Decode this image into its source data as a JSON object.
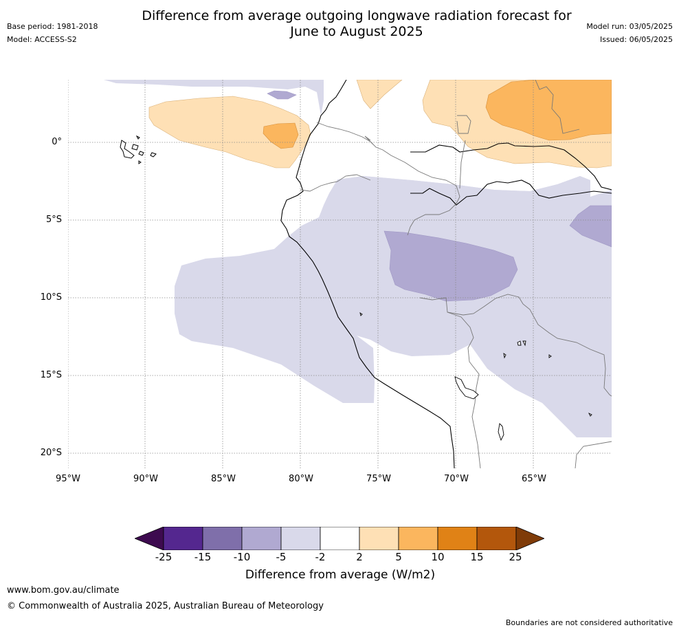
{
  "title_line1": "Difference from average outgoing longwave radiation forecast for",
  "title_line2": "June to August 2025",
  "base_period": "Base period: 1981-2018",
  "model": "Model: ACCESS-S2",
  "model_run": "Model run: 03/05/2025",
  "issued": "Issued: 06/05/2025",
  "x_ticks": [
    "95°W",
    "90°W",
    "85°W",
    "80°W",
    "75°W",
    "70°W",
    "65°W"
  ],
  "y_ticks": [
    "0°",
    "5°S",
    "10°S",
    "15°S",
    "20°S"
  ],
  "colorbar": {
    "ticks": [
      "-25",
      "-15",
      "-10",
      "-5",
      "-2",
      "2",
      "5",
      "10",
      "15",
      "25"
    ],
    "colors": [
      "#3d0a4f",
      "#54278f",
      "#7f6faa",
      "#b0a9d1",
      "#d9d9ea",
      "#ffffff",
      "#fee0b5",
      "#fbb65e",
      "#e08216",
      "#b3570c",
      "#7f3b08"
    ],
    "label": "Difference from average (W/m2)"
  },
  "legend_categories": [
    {
      "range": "-5 to -2",
      "color": "#d9d9ea"
    },
    {
      "range": "-10 to -5",
      "color": "#b0a9d1"
    },
    {
      "range": "2 to 5",
      "color": "#fee0b5"
    },
    {
      "range": "5 to 10",
      "color": "#fbb65e"
    }
  ],
  "website": "www.bom.gov.au/climate",
  "copyright": "© Commonwealth of Australia 2025, Australian Bureau of Meteorology",
  "disclaimer": "Boundaries are not considered authoritative"
}
